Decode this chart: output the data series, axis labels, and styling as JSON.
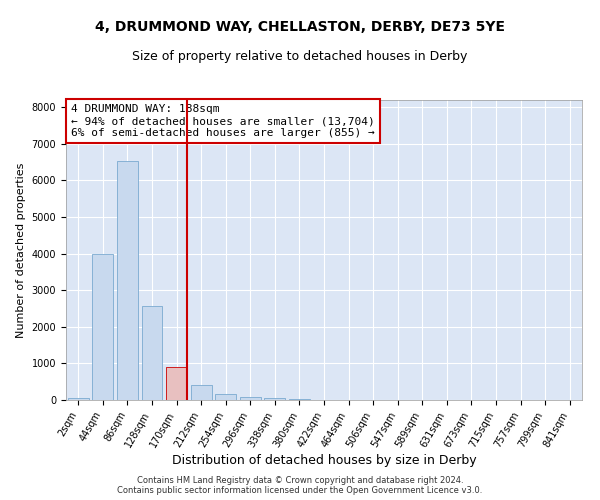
{
  "title1": "4, DRUMMOND WAY, CHELLASTON, DERBY, DE73 5YE",
  "title2": "Size of property relative to detached houses in Derby",
  "xlabel": "Distribution of detached houses by size in Derby",
  "ylabel": "Number of detached properties",
  "bar_labels": [
    "2sqm",
    "44sqm",
    "86sqm",
    "128sqm",
    "170sqm",
    "212sqm",
    "254sqm",
    "296sqm",
    "338sqm",
    "380sqm",
    "422sqm",
    "464sqm",
    "506sqm",
    "547sqm",
    "589sqm",
    "631sqm",
    "673sqm",
    "715sqm",
    "757sqm",
    "799sqm",
    "841sqm"
  ],
  "bar_values": [
    50,
    3980,
    6520,
    2580,
    900,
    410,
    155,
    85,
    55,
    30,
    10,
    5,
    5,
    2,
    2,
    1,
    1,
    1,
    0,
    0,
    0
  ],
  "bar_color": "#c8d9ee",
  "bar_edge_color": "#7aaad0",
  "highlight_bar_index": 4,
  "highlight_bar_color": "#e8c0c0",
  "highlight_bar_edge_color": "#cc0000",
  "vline_color": "#cc0000",
  "annotation_text": "4 DRUMMOND WAY: 188sqm\n← 94% of detached houses are smaller (13,704)\n6% of semi-detached houses are larger (855) →",
  "annotation_box_color": "#ffffff",
  "annotation_edge_color": "#cc0000",
  "ylim": [
    0,
    8200
  ],
  "yticks": [
    0,
    1000,
    2000,
    3000,
    4000,
    5000,
    6000,
    7000,
    8000
  ],
  "footer_text": "Contains HM Land Registry data © Crown copyright and database right 2024.\nContains public sector information licensed under the Open Government Licence v3.0.",
  "fig_bg_color": "#ffffff",
  "plot_bg_color": "#dce6f5",
  "grid_color": "#ffffff",
  "title1_fontsize": 10,
  "title2_fontsize": 9,
  "xlabel_fontsize": 9,
  "ylabel_fontsize": 8,
  "tick_fontsize": 7,
  "annotation_fontsize": 8,
  "footer_fontsize": 6
}
